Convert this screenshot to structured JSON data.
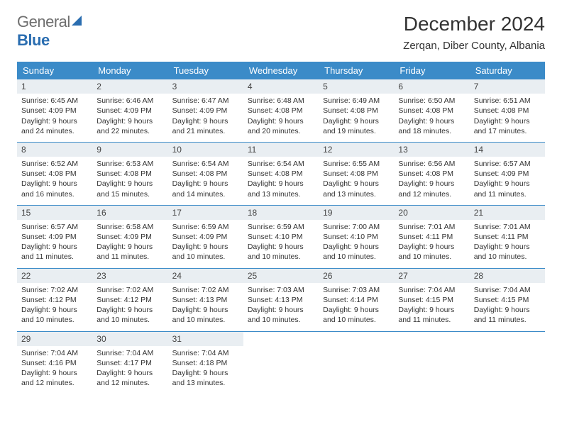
{
  "logo": {
    "text1": "General",
    "text2": "Blue"
  },
  "title": "December 2024",
  "location": "Zerqan, Diber County, Albania",
  "day_headers": [
    "Sunday",
    "Monday",
    "Tuesday",
    "Wednesday",
    "Thursday",
    "Friday",
    "Saturday"
  ],
  "colors": {
    "header_bg": "#3b8bc8",
    "header_fg": "#ffffff",
    "daynum_bg": "#e9eef2",
    "row_border": "#3b8bc8",
    "logo_blue": "#2a6db0",
    "text": "#333333"
  },
  "layout": {
    "columns": 7,
    "rows": 5
  },
  "days": [
    {
      "n": "1",
      "sr": "6:45 AM",
      "ss": "4:09 PM",
      "dh": "9",
      "dm": "24"
    },
    {
      "n": "2",
      "sr": "6:46 AM",
      "ss": "4:09 PM",
      "dh": "9",
      "dm": "22"
    },
    {
      "n": "3",
      "sr": "6:47 AM",
      "ss": "4:09 PM",
      "dh": "9",
      "dm": "21"
    },
    {
      "n": "4",
      "sr": "6:48 AM",
      "ss": "4:08 PM",
      "dh": "9",
      "dm": "20"
    },
    {
      "n": "5",
      "sr": "6:49 AM",
      "ss": "4:08 PM",
      "dh": "9",
      "dm": "19"
    },
    {
      "n": "6",
      "sr": "6:50 AM",
      "ss": "4:08 PM",
      "dh": "9",
      "dm": "18"
    },
    {
      "n": "7",
      "sr": "6:51 AM",
      "ss": "4:08 PM",
      "dh": "9",
      "dm": "17"
    },
    {
      "n": "8",
      "sr": "6:52 AM",
      "ss": "4:08 PM",
      "dh": "9",
      "dm": "16"
    },
    {
      "n": "9",
      "sr": "6:53 AM",
      "ss": "4:08 PM",
      "dh": "9",
      "dm": "15"
    },
    {
      "n": "10",
      "sr": "6:54 AM",
      "ss": "4:08 PM",
      "dh": "9",
      "dm": "14"
    },
    {
      "n": "11",
      "sr": "6:54 AM",
      "ss": "4:08 PM",
      "dh": "9",
      "dm": "13"
    },
    {
      "n": "12",
      "sr": "6:55 AM",
      "ss": "4:08 PM",
      "dh": "9",
      "dm": "13"
    },
    {
      "n": "13",
      "sr": "6:56 AM",
      "ss": "4:08 PM",
      "dh": "9",
      "dm": "12"
    },
    {
      "n": "14",
      "sr": "6:57 AM",
      "ss": "4:09 PM",
      "dh": "9",
      "dm": "11"
    },
    {
      "n": "15",
      "sr": "6:57 AM",
      "ss": "4:09 PM",
      "dh": "9",
      "dm": "11"
    },
    {
      "n": "16",
      "sr": "6:58 AM",
      "ss": "4:09 PM",
      "dh": "9",
      "dm": "11"
    },
    {
      "n": "17",
      "sr": "6:59 AM",
      "ss": "4:09 PM",
      "dh": "9",
      "dm": "10"
    },
    {
      "n": "18",
      "sr": "6:59 AM",
      "ss": "4:10 PM",
      "dh": "9",
      "dm": "10"
    },
    {
      "n": "19",
      "sr": "7:00 AM",
      "ss": "4:10 PM",
      "dh": "9",
      "dm": "10"
    },
    {
      "n": "20",
      "sr": "7:01 AM",
      "ss": "4:11 PM",
      "dh": "9",
      "dm": "10"
    },
    {
      "n": "21",
      "sr": "7:01 AM",
      "ss": "4:11 PM",
      "dh": "9",
      "dm": "10"
    },
    {
      "n": "22",
      "sr": "7:02 AM",
      "ss": "4:12 PM",
      "dh": "9",
      "dm": "10"
    },
    {
      "n": "23",
      "sr": "7:02 AM",
      "ss": "4:12 PM",
      "dh": "9",
      "dm": "10"
    },
    {
      "n": "24",
      "sr": "7:02 AM",
      "ss": "4:13 PM",
      "dh": "9",
      "dm": "10"
    },
    {
      "n": "25",
      "sr": "7:03 AM",
      "ss": "4:13 PM",
      "dh": "9",
      "dm": "10"
    },
    {
      "n": "26",
      "sr": "7:03 AM",
      "ss": "4:14 PM",
      "dh": "9",
      "dm": "10"
    },
    {
      "n": "27",
      "sr": "7:04 AM",
      "ss": "4:15 PM",
      "dh": "9",
      "dm": "11"
    },
    {
      "n": "28",
      "sr": "7:04 AM",
      "ss": "4:15 PM",
      "dh": "9",
      "dm": "11"
    },
    {
      "n": "29",
      "sr": "7:04 AM",
      "ss": "4:16 PM",
      "dh": "9",
      "dm": "12"
    },
    {
      "n": "30",
      "sr": "7:04 AM",
      "ss": "4:17 PM",
      "dh": "9",
      "dm": "12"
    },
    {
      "n": "31",
      "sr": "7:04 AM",
      "ss": "4:18 PM",
      "dh": "9",
      "dm": "13"
    }
  ],
  "labels": {
    "sunrise": "Sunrise: ",
    "sunset": "Sunset: ",
    "daylight_prefix": "Daylight: ",
    "hours_word": " hours",
    "and_word": "and ",
    "minutes_word": " minutes."
  }
}
